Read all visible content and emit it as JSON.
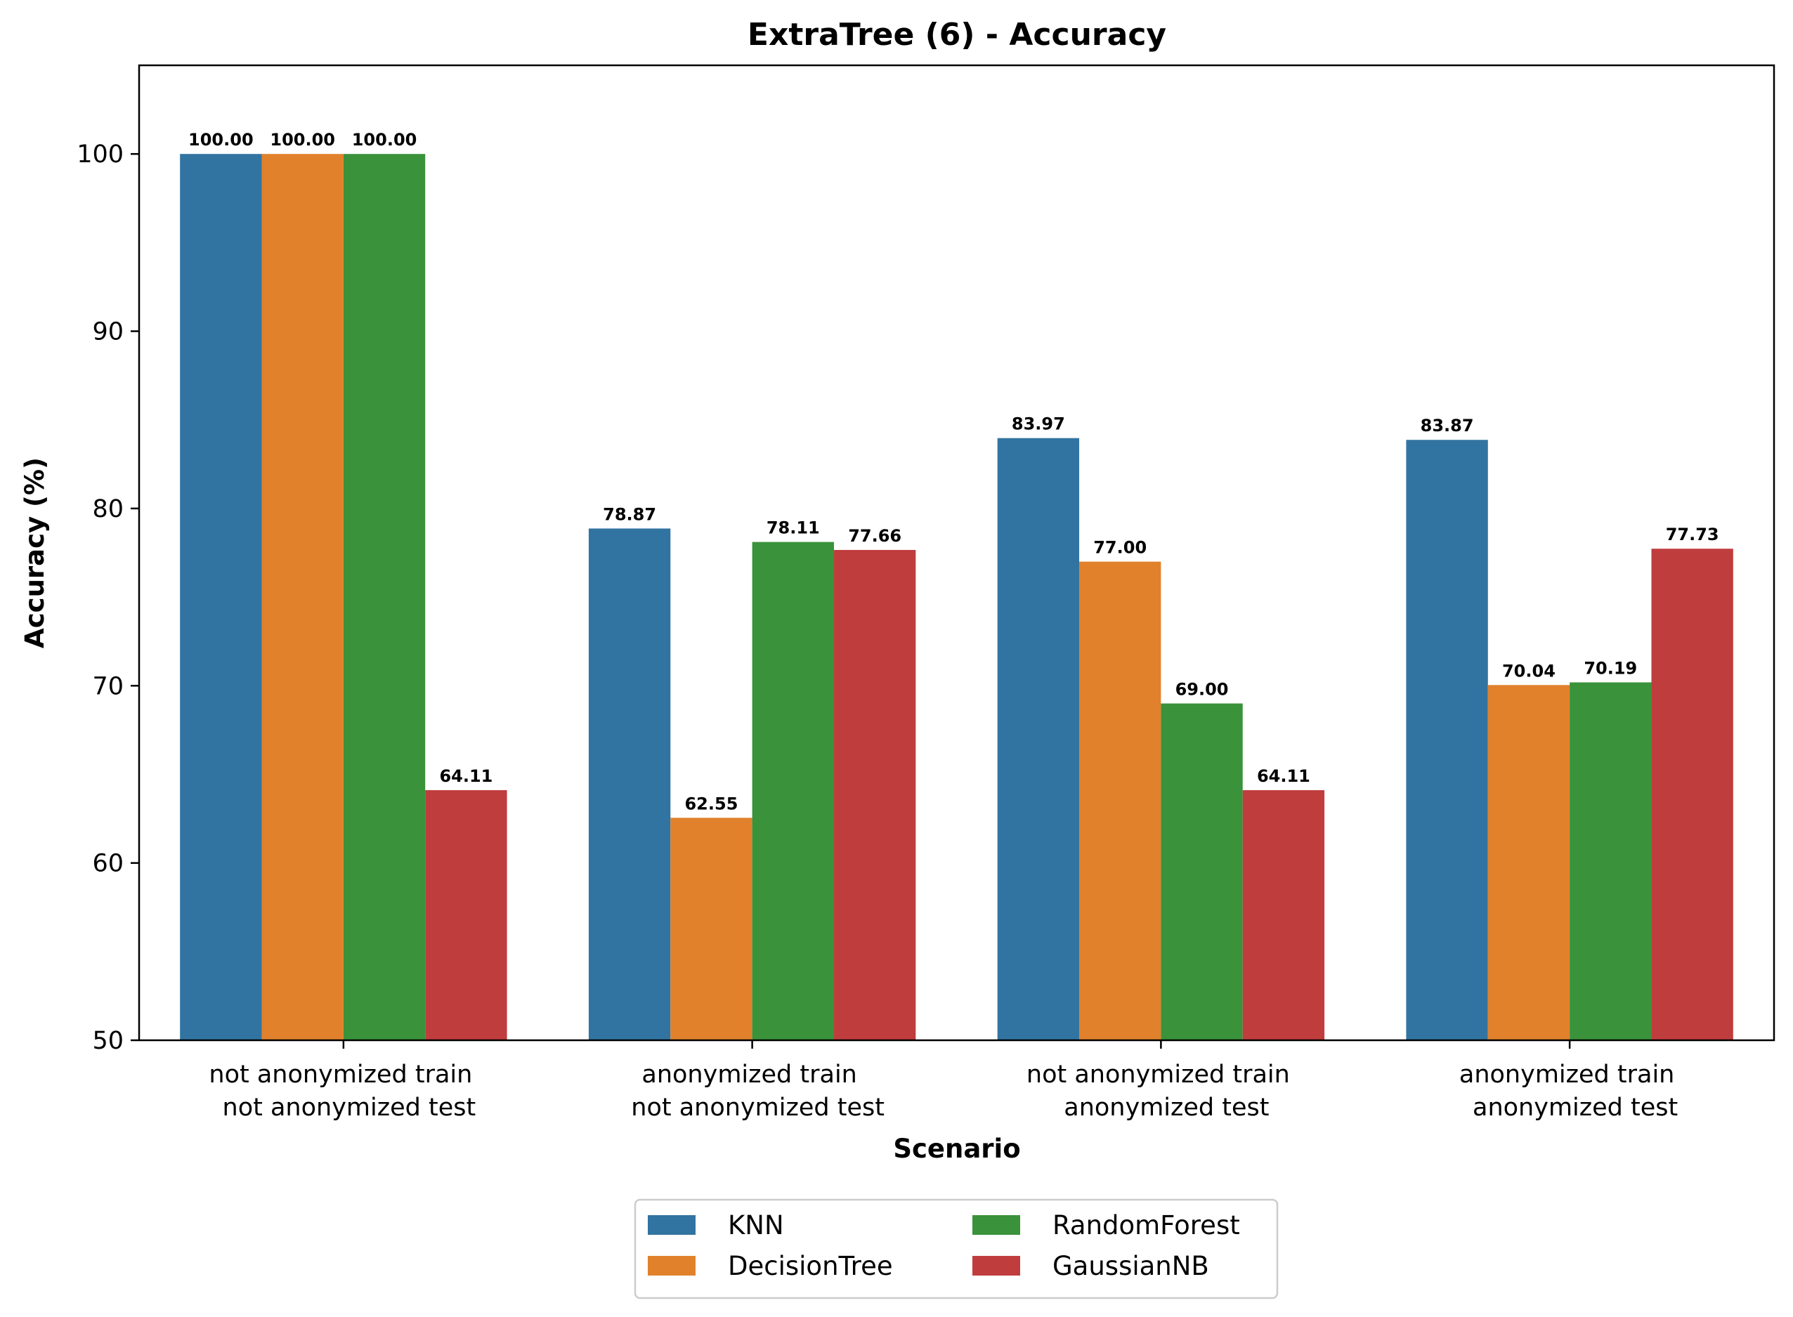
{
  "chart_data": {
    "type": "bar",
    "title": "ExtraTree (6) - Accuracy",
    "xlabel": "Scenario",
    "ylabel": "Accuracy (%)",
    "ylim": [
      50,
      105
    ],
    "yticks": [
      50,
      60,
      70,
      80,
      90,
      100
    ],
    "grid": false,
    "legend_position": "bottom-center",
    "categories": [
      [
        "not anonymized train",
        "not anonymized test"
      ],
      [
        "anonymized train",
        "not anonymized test"
      ],
      [
        "not anonymized train",
        "anonymized test"
      ],
      [
        "anonymized train",
        "anonymized test"
      ]
    ],
    "series": [
      {
        "name": "KNN",
        "color": "#3274a1",
        "values": [
          100.0,
          78.87,
          83.97,
          83.87
        ],
        "labels": [
          "100.00",
          "78.87",
          "83.97",
          "83.87"
        ]
      },
      {
        "name": "DecisionTree",
        "color": "#e1812c",
        "values": [
          100.0,
          62.55,
          77.0,
          70.04
        ],
        "labels": [
          "100.00",
          "62.55",
          "77.00",
          "70.04"
        ]
      },
      {
        "name": "RandomForest",
        "color": "#3a923a",
        "values": [
          100.0,
          78.11,
          69.0,
          70.19
        ],
        "labels": [
          "100.00",
          "78.11",
          "69.00",
          "70.19"
        ]
      },
      {
        "name": "GaussianNB",
        "color": "#c03d3e",
        "values": [
          64.11,
          77.66,
          64.11,
          77.73
        ],
        "labels": [
          "64.11",
          "77.66",
          "64.11",
          "77.73"
        ]
      }
    ]
  }
}
